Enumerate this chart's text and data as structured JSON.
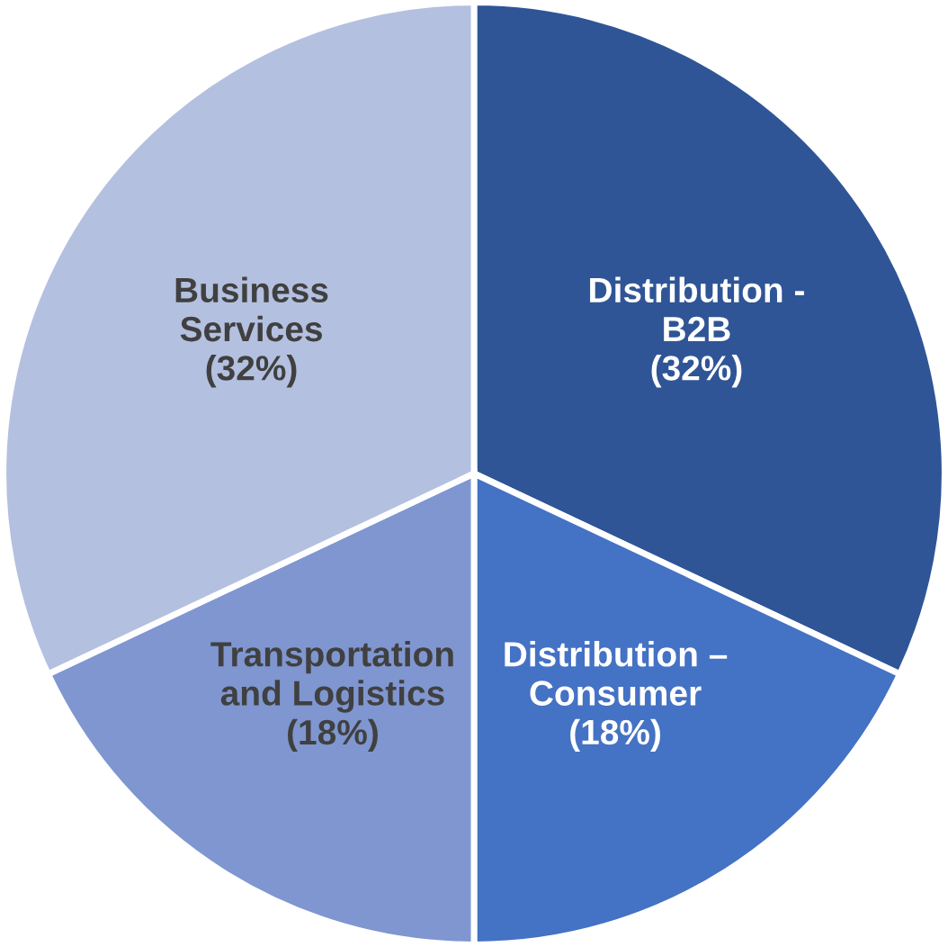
{
  "chart_data": {
    "type": "pie",
    "categories": [
      "Distribution -\nB2B",
      "Distribution –\nConsumer",
      "Transportation\nand Logistics",
      "Business\nServices"
    ],
    "values": [
      32,
      18,
      18,
      32
    ],
    "value_labels": [
      "(32%)",
      "(18%)",
      "(18%)",
      "(32%)"
    ],
    "colors": [
      "#2f5597",
      "#4472c4",
      "#7f96d0",
      "#b4c0e0"
    ]
  }
}
